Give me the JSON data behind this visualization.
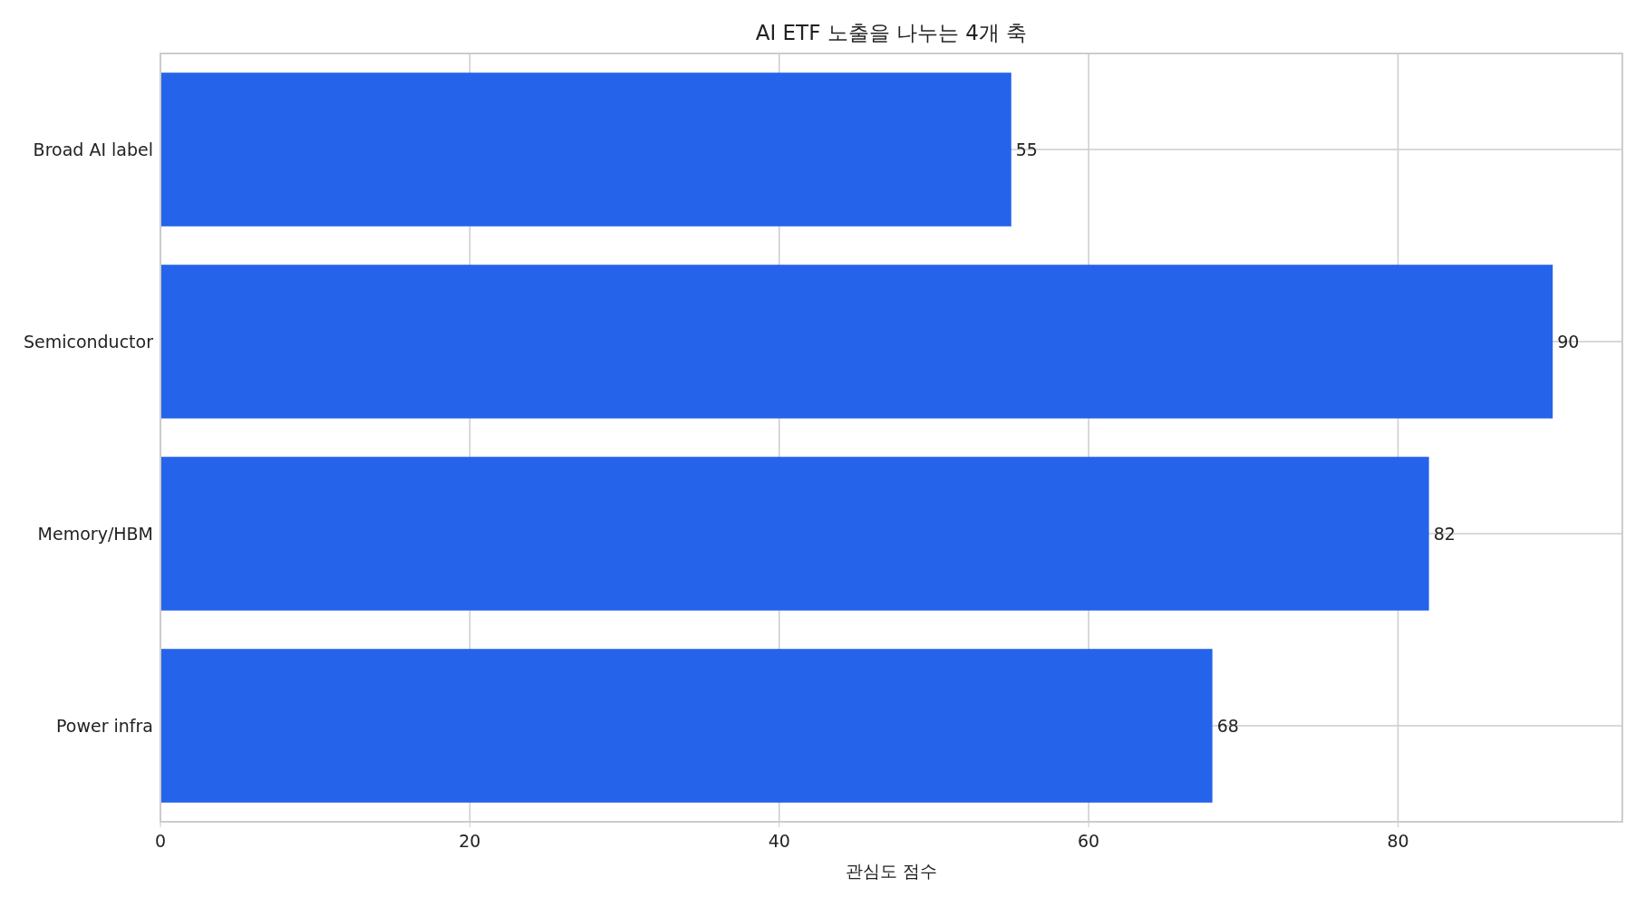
{
  "chart_data": {
    "type": "bar",
    "orientation": "horizontal",
    "title": "AI ETF 노출을 나누는 4개 축",
    "xlabel": "관심도 점수",
    "categories": [
      "Broad AI label",
      "Semiconductor",
      "Memory/HBM",
      "Power infra"
    ],
    "values": [
      55,
      90,
      82,
      68
    ],
    "color": "#2563eb",
    "xlim": [
      0,
      94.5
    ],
    "xticks": [
      0,
      20,
      40,
      60,
      80
    ],
    "grid": true,
    "data_labels": true
  }
}
